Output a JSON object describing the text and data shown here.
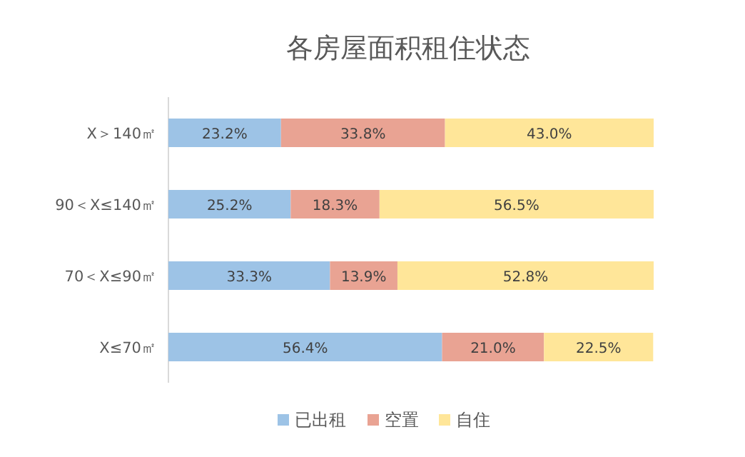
{
  "chart_data": {
    "type": "bar",
    "title": "各房屋面积租住状态",
    "orientation": "horizontal",
    "stacked": true,
    "legend": "bottom",
    "categories": [
      "X＞140㎡",
      "90＜X≤140㎡",
      "70＜X≤90㎡",
      "X≤70㎡"
    ],
    "series": [
      {
        "name": "已出租",
        "color": "#9dc3e6",
        "values": [
          23.2,
          25.2,
          33.3,
          56.4
        ],
        "value_labels": [
          "23.2%",
          "25.2%",
          "33.3%",
          "56.4%"
        ]
      },
      {
        "name": "空置",
        "color": "#e9a393",
        "values": [
          33.8,
          18.3,
          13.9,
          21.0
        ],
        "value_labels": [
          "33.8%",
          "18.3%",
          "13.9%",
          "21.0%"
        ]
      },
      {
        "name": "自住",
        "color": "#ffe699",
        "values": [
          43.0,
          56.5,
          52.8,
          22.5
        ],
        "value_labels": [
          "43.0%",
          "56.5%",
          "52.8%",
          "22.5%"
        ]
      }
    ]
  }
}
